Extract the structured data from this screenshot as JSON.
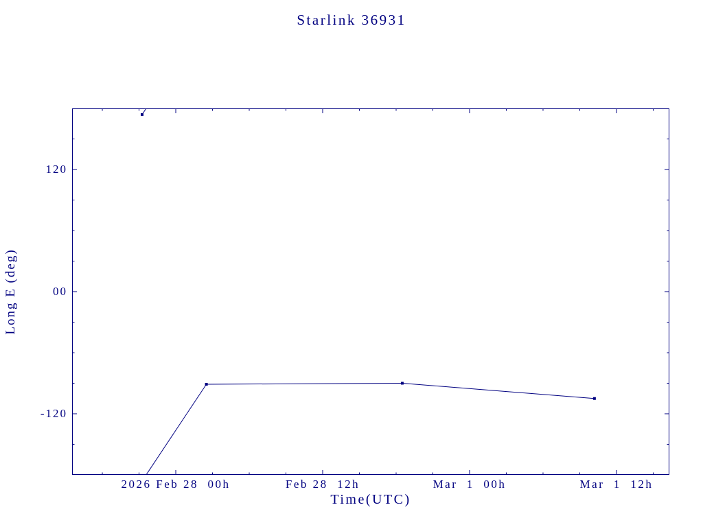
{
  "chart": {
    "title": "Starlink 36931",
    "x_axis_label": "Time(UTC)",
    "y_axis_label": "Long E (deg)"
  },
  "chart_data": {
    "type": "line",
    "title": "Starlink 36931",
    "xlabel": "Time(UTC)",
    "ylabel": "Long E (deg)",
    "x_unit": "hours relative to 2026 Feb 28 00:00 UTC",
    "xlim": [
      -8.47,
      40.32
    ],
    "ylim": [
      -180,
      180
    ],
    "grid": false,
    "legend": "none",
    "x_ticks": [
      {
        "hours": 0,
        "label": "2026 Feb 28  00h"
      },
      {
        "hours": 12,
        "label": "Feb 28  12h"
      },
      {
        "hours": 24,
        "label": "Mar  1  00h"
      },
      {
        "hours": 36,
        "label": "Mar  1  12h"
      }
    ],
    "x_minor_tick_step_hours": 3,
    "y_ticks": [
      {
        "value": 120,
        "label": "120"
      },
      {
        "value": 0,
        "label": "00"
      },
      {
        "value": -120,
        "label": "-120"
      }
    ],
    "y_minor_tick_step_deg": 30,
    "series": [
      {
        "name": "Long E (deg)",
        "marker": "square",
        "wrap_at_degrees": 180,
        "points": [
          {
            "hours": -2.75,
            "deg": 174
          },
          {
            "hours": 2.5,
            "deg": -91
          },
          {
            "hours": 18.5,
            "deg": -90
          },
          {
            "hours": 34.2,
            "deg": -105
          }
        ]
      }
    ],
    "colors": {
      "accent": "#000080",
      "background": "#ffffff"
    }
  }
}
